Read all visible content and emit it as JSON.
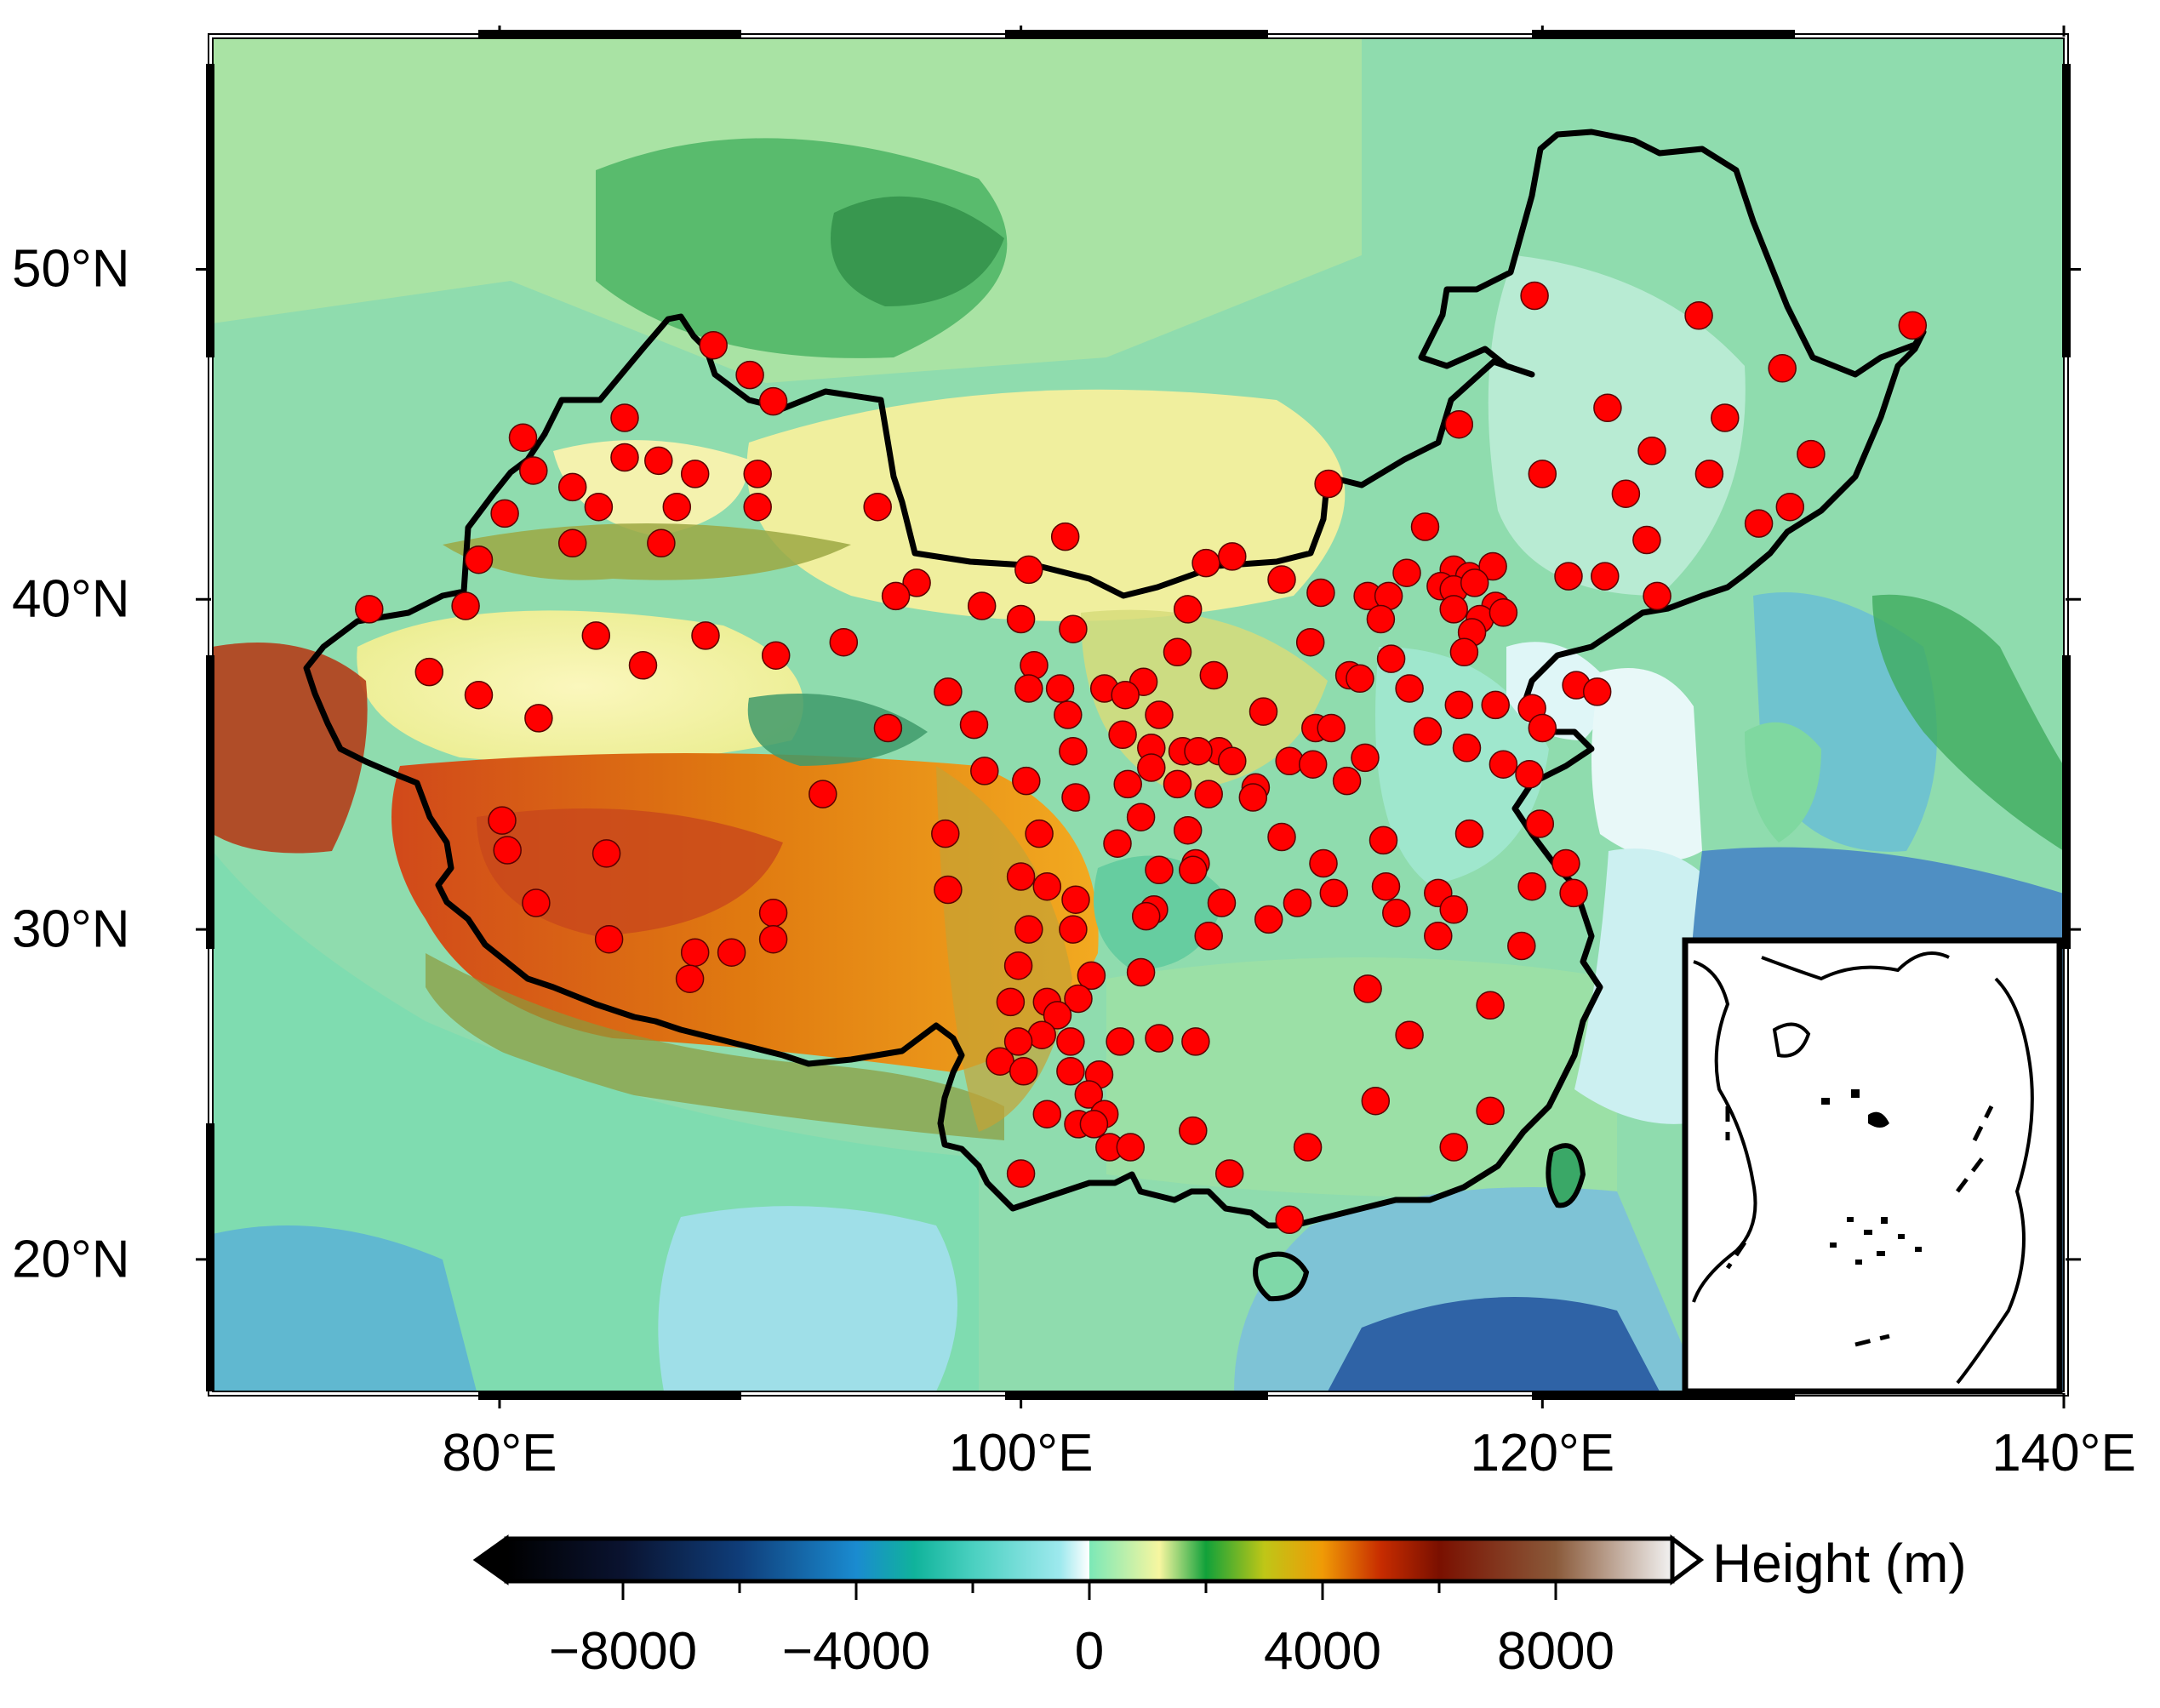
{
  "map": {
    "lon_range": [
      69,
      140
    ],
    "lat_range": [
      16,
      57
    ],
    "x_ticks": [
      {
        "lon": 80,
        "label": "80°E"
      },
      {
        "lon": 100,
        "label": "100°E"
      },
      {
        "lon": 120,
        "label": "120°E"
      },
      {
        "lon": 140,
        "label": "140°E"
      }
    ],
    "y_ticks": [
      {
        "lat": 20,
        "label": "20°N"
      },
      {
        "lat": 30,
        "label": "30°N"
      },
      {
        "lat": 40,
        "label": "40°N"
      },
      {
        "lat": 50,
        "label": "50°N"
      }
    ],
    "station_color": "#ff0000",
    "boundary_color": "#000000",
    "ocean_color": "#bfe8ec",
    "stations": [
      [
        119.7,
        49.2
      ],
      [
        126.0,
        48.6
      ],
      [
        134.2,
        48.3
      ],
      [
        88.2,
        47.7
      ],
      [
        89.6,
        46.8
      ],
      [
        129.2,
        47.0
      ],
      [
        90.5,
        46.0
      ],
      [
        84.8,
        45.5
      ],
      [
        122.5,
        45.8
      ],
      [
        127.0,
        45.5
      ],
      [
        116.8,
        45.3
      ],
      [
        80.9,
        44.9
      ],
      [
        84.8,
        44.3
      ],
      [
        86.1,
        44.2
      ],
      [
        81.3,
        43.9
      ],
      [
        87.5,
        43.8
      ],
      [
        89.9,
        43.8
      ],
      [
        120.0,
        43.8
      ],
      [
        124.2,
        44.5
      ],
      [
        126.4,
        43.8
      ],
      [
        130.3,
        44.4
      ],
      [
        82.8,
        43.4
      ],
      [
        111.8,
        43.5
      ],
      [
        123.2,
        43.2
      ],
      [
        83.8,
        42.8
      ],
      [
        86.8,
        42.8
      ],
      [
        89.9,
        42.8
      ],
      [
        94.5,
        42.8
      ],
      [
        80.2,
        42.6
      ],
      [
        129.5,
        42.8
      ],
      [
        128.3,
        42.3
      ],
      [
        115.5,
        42.2
      ],
      [
        82.8,
        41.7
      ],
      [
        86.2,
        41.7
      ],
      [
        124.0,
        41.8
      ],
      [
        79.2,
        41.2
      ],
      [
        101.7,
        41.9
      ],
      [
        107.1,
        41.1
      ],
      [
        108.1,
        41.3
      ],
      [
        100.3,
        40.9
      ],
      [
        114.8,
        40.8
      ],
      [
        116.6,
        40.9
      ],
      [
        117.2,
        40.7
      ],
      [
        118.1,
        41.0
      ],
      [
        121.0,
        40.7
      ],
      [
        122.4,
        40.7
      ],
      [
        110.0,
        40.6
      ],
      [
        111.5,
        40.2
      ],
      [
        96.0,
        40.5
      ],
      [
        95.2,
        40.1
      ],
      [
        113.3,
        40.1
      ],
      [
        114.1,
        40.1
      ],
      [
        116.1,
        40.4
      ],
      [
        116.6,
        40.3
      ],
      [
        117.4,
        40.5
      ],
      [
        118.2,
        39.8
      ],
      [
        117.6,
        39.4
      ],
      [
        118.5,
        39.6
      ],
      [
        124.4,
        40.1
      ],
      [
        75.0,
        39.7
      ],
      [
        78.7,
        39.8
      ],
      [
        98.5,
        39.8
      ],
      [
        100.0,
        39.4
      ],
      [
        113.8,
        39.4
      ],
      [
        116.6,
        39.7
      ],
      [
        117.3,
        39.0
      ],
      [
        106.4,
        39.7
      ],
      [
        83.7,
        38.9
      ],
      [
        87.9,
        38.9
      ],
      [
        93.2,
        38.7
      ],
      [
        102.0,
        39.1
      ],
      [
        106.0,
        38.4
      ],
      [
        111.1,
        38.7
      ],
      [
        114.2,
        38.2
      ],
      [
        117.0,
        38.4
      ],
      [
        90.6,
        38.3
      ],
      [
        100.5,
        38.0
      ],
      [
        85.5,
        38.0
      ],
      [
        77.3,
        37.8
      ],
      [
        112.6,
        37.7
      ],
      [
        113.0,
        37.6
      ],
      [
        104.7,
        37.5
      ],
      [
        107.4,
        37.7
      ],
      [
        121.3,
        37.4
      ],
      [
        122.1,
        37.2
      ],
      [
        79.2,
        37.1
      ],
      [
        97.2,
        37.2
      ],
      [
        100.3,
        37.3
      ],
      [
        101.5,
        37.3
      ],
      [
        103.2,
        37.3
      ],
      [
        104.0,
        37.1
      ],
      [
        114.9,
        37.3
      ],
      [
        116.8,
        36.8
      ],
      [
        118.2,
        36.8
      ],
      [
        119.6,
        36.7
      ],
      [
        120.0,
        36.1
      ],
      [
        81.5,
        36.4
      ],
      [
        94.9,
        36.1
      ],
      [
        98.2,
        36.2
      ],
      [
        101.8,
        36.5
      ],
      [
        105.3,
        36.5
      ],
      [
        109.3,
        36.6
      ],
      [
        111.3,
        36.1
      ],
      [
        111.9,
        36.1
      ],
      [
        115.6,
        36.0
      ],
      [
        103.9,
        35.9
      ],
      [
        107.6,
        35.4
      ],
      [
        113.2,
        35.2
      ],
      [
        117.1,
        35.5
      ],
      [
        118.5,
        35.0
      ],
      [
        102.0,
        35.4
      ],
      [
        105.0,
        35.5
      ],
      [
        106.2,
        35.4
      ],
      [
        106.8,
        35.4
      ],
      [
        108.1,
        35.1
      ],
      [
        110.3,
        35.1
      ],
      [
        111.2,
        35.0
      ],
      [
        100.2,
        34.5
      ],
      [
        98.6,
        34.8
      ],
      [
        105.0,
        34.9
      ],
      [
        106.0,
        34.4
      ],
      [
        109.0,
        34.3
      ],
      [
        112.5,
        34.5
      ],
      [
        119.5,
        34.7
      ],
      [
        92.4,
        34.1
      ],
      [
        102.1,
        34.0
      ],
      [
        104.1,
        34.4
      ],
      [
        107.2,
        34.1
      ],
      [
        108.9,
        34.0
      ],
      [
        97.1,
        32.9
      ],
      [
        80.1,
        33.3
      ],
      [
        80.3,
        32.4
      ],
      [
        84.1,
        32.3
      ],
      [
        100.7,
        32.9
      ],
      [
        104.6,
        33.4
      ],
      [
        106.4,
        33.0
      ],
      [
        110.0,
        32.8
      ],
      [
        113.9,
        32.7
      ],
      [
        117.2,
        32.9
      ],
      [
        119.9,
        33.2
      ],
      [
        103.7,
        32.6
      ],
      [
        106.7,
        32.0
      ],
      [
        111.6,
        32.0
      ],
      [
        120.9,
        32.0
      ],
      [
        97.2,
        31.2
      ],
      [
        100.0,
        31.6
      ],
      [
        101.0,
        31.3
      ],
      [
        102.1,
        30.9
      ],
      [
        105.3,
        31.8
      ],
      [
        106.6,
        31.8
      ],
      [
        112.0,
        31.1
      ],
      [
        114.0,
        31.3
      ],
      [
        116.0,
        31.1
      ],
      [
        119.6,
        31.3
      ],
      [
        121.2,
        31.1
      ],
      [
        81.4,
        30.8
      ],
      [
        90.5,
        30.5
      ],
      [
        105.1,
        30.6
      ],
      [
        107.7,
        30.8
      ],
      [
        110.6,
        30.8
      ],
      [
        114.4,
        30.5
      ],
      [
        116.6,
        30.6
      ],
      [
        90.5,
        29.7
      ],
      [
        84.2,
        29.7
      ],
      [
        87.5,
        29.3
      ],
      [
        88.9,
        29.3
      ],
      [
        100.3,
        30.0
      ],
      [
        102.0,
        30.0
      ],
      [
        104.8,
        30.4
      ],
      [
        107.2,
        29.8
      ],
      [
        109.5,
        30.3
      ],
      [
        116.0,
        29.8
      ],
      [
        119.2,
        29.5
      ],
      [
        102.7,
        28.6
      ],
      [
        104.6,
        28.7
      ],
      [
        99.9,
        28.9
      ],
      [
        87.3,
        28.5
      ],
      [
        113.3,
        28.2
      ],
      [
        118.0,
        27.7
      ],
      [
        99.6,
        27.8
      ],
      [
        101.0,
        27.8
      ],
      [
        102.2,
        27.9
      ],
      [
        101.4,
        27.4
      ],
      [
        103.8,
        26.6
      ],
      [
        106.7,
        26.6
      ],
      [
        114.9,
        26.8
      ],
      [
        99.2,
        26.0
      ],
      [
        100.1,
        25.7
      ],
      [
        100.8,
        26.8
      ],
      [
        101.9,
        26.6
      ],
      [
        103.0,
        25.6
      ],
      [
        105.3,
        26.7
      ],
      [
        99.9,
        26.6
      ],
      [
        101.9,
        25.7
      ],
      [
        102.6,
        25.0
      ],
      [
        113.6,
        24.8
      ],
      [
        118.0,
        24.5
      ],
      [
        101.0,
        24.4
      ],
      [
        102.2,
        24.1
      ],
      [
        103.2,
        24.4
      ],
      [
        106.6,
        23.9
      ],
      [
        102.8,
        24.1
      ],
      [
        103.4,
        23.4
      ],
      [
        104.2,
        23.4
      ],
      [
        111.0,
        23.4
      ],
      [
        116.6,
        23.4
      ],
      [
        108.0,
        22.6
      ],
      [
        100.0,
        22.6
      ],
      [
        110.3,
        21.2
      ]
    ]
  },
  "colorbar": {
    "title": "Height (m)",
    "range": [
      -10000,
      10000
    ],
    "tick_values": [
      -8000,
      -4000,
      0,
      4000,
      8000
    ],
    "tick_labels": [
      "−8000",
      "−4000",
      "0",
      "4000",
      "8000"
    ],
    "stops": [
      {
        "v": -10000,
        "c": "#000000"
      },
      {
        "v": -8000,
        "c": "#0a1330"
      },
      {
        "v": -6000,
        "c": "#0f3d79"
      },
      {
        "v": -4000,
        "c": "#1a8bd0"
      },
      {
        "v": -3000,
        "c": "#10b39b"
      },
      {
        "v": -2000,
        "c": "#4ad0c0"
      },
      {
        "v": -500,
        "c": "#9ee9ee"
      },
      {
        "v": 0,
        "c": "#ffffff"
      },
      {
        "v": 0,
        "c": "#7be8b7"
      },
      {
        "v": 1200,
        "c": "#f7f6a0"
      },
      {
        "v": 2000,
        "c": "#11a13a"
      },
      {
        "v": 3000,
        "c": "#bfc617"
      },
      {
        "v": 4000,
        "c": "#f09a06"
      },
      {
        "v": 5000,
        "c": "#c72c00"
      },
      {
        "v": 6000,
        "c": "#7a1000"
      },
      {
        "v": 8000,
        "c": "#8a5a3a"
      },
      {
        "v": 10000,
        "c": "#f2f2f2"
      }
    ]
  }
}
